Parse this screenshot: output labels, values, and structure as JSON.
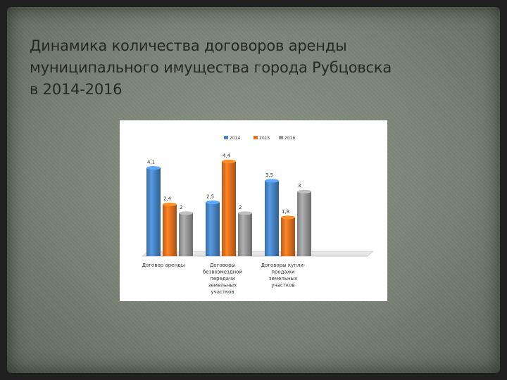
{
  "slide": {
    "title_lines": [
      "Динамика количества договоров аренды",
      "муниципального имущества города Рубцовска",
      "в 2014-2016"
    ]
  },
  "chart_data": {
    "type": "bar",
    "title": "",
    "categories": [
      [
        "Договор аренды"
      ],
      [
        "Договоры",
        "безвозмездной",
        "передачи",
        "земельных",
        "участков"
      ],
      [
        "Договоры купли-",
        "продажи",
        "земельных",
        "участков"
      ]
    ],
    "series": [
      {
        "name": "2014",
        "values": [
          4.1,
          2.5,
          3.5
        ],
        "color": "#4a86c6",
        "labels": [
          "4,1",
          "2,5",
          "3,5"
        ]
      },
      {
        "name": "2015",
        "values": [
          2.4,
          4.4,
          1.8
        ],
        "color": "#e8731f",
        "labels": [
          "2,4",
          "4,4",
          "1,8"
        ]
      },
      {
        "name": "2016",
        "values": [
          2,
          2,
          3
        ],
        "color": "#9a9a9a",
        "labels": [
          "2",
          "2",
          "3"
        ]
      }
    ],
    "legend_position": "top",
    "grid": false,
    "ylim": [
      0,
      5
    ],
    "style": "3d-cylinder"
  }
}
